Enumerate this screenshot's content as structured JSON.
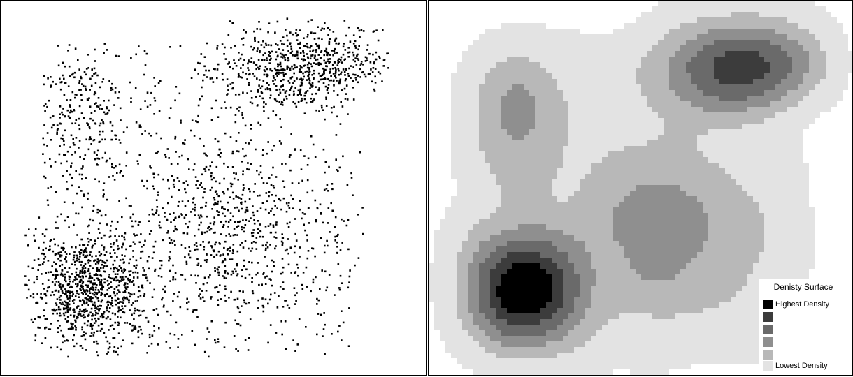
{
  "legend": {
    "title": "Denisty Surface",
    "classes": [
      {
        "label": "Highest Density",
        "color": "#000000"
      },
      {
        "label": "",
        "color": "#3c3c3c"
      },
      {
        "label": "",
        "color": "#6a6a6a"
      },
      {
        "label": "",
        "color": "#8f8f8f"
      },
      {
        "label": "",
        "color": "#b8b8b8"
      },
      {
        "label": "Lowest Density",
        "color": "#e3e3e3"
      }
    ]
  }
}
